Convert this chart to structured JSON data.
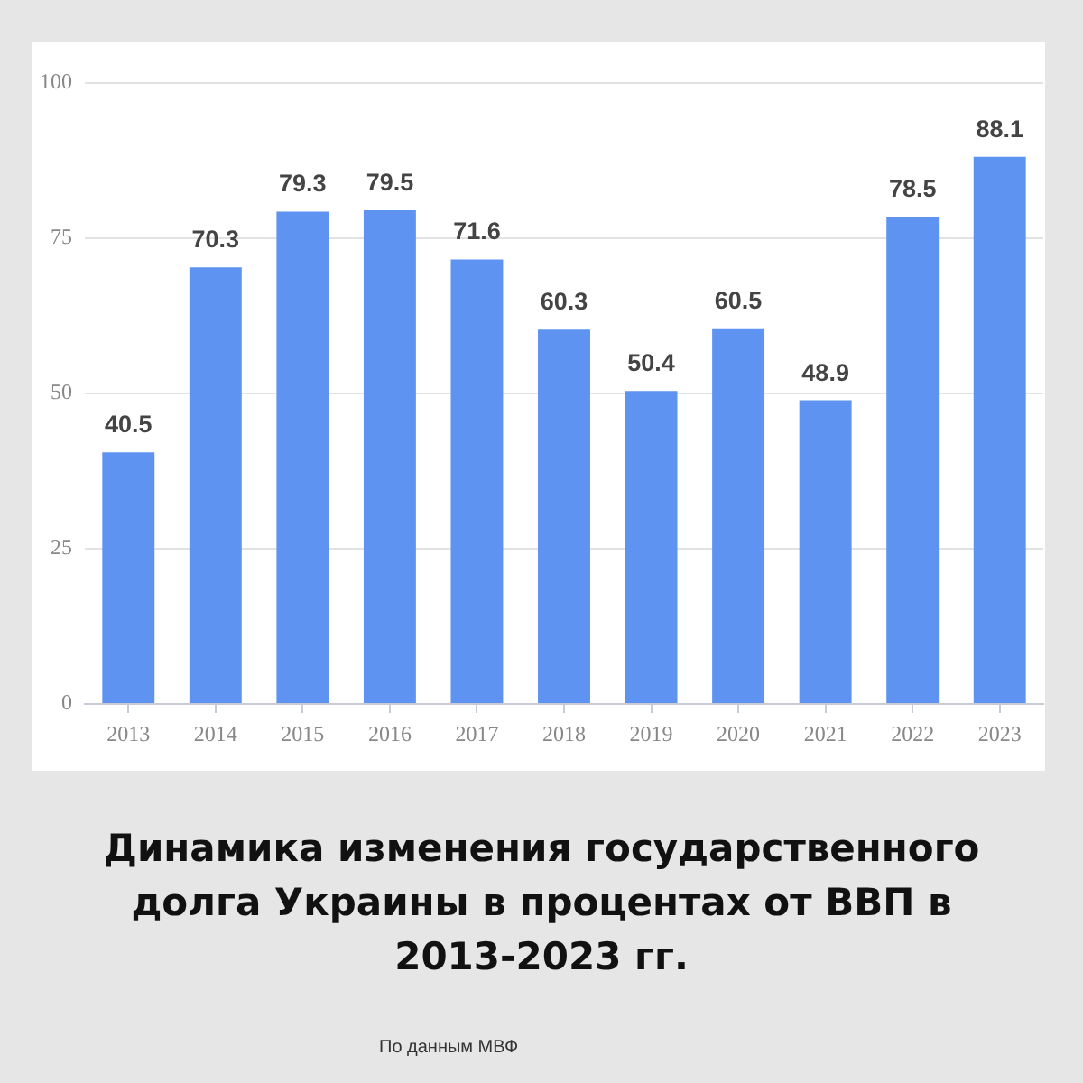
{
  "chart_data": {
    "type": "bar",
    "title": "Динамика изменения государственного долга Украины в процентах от ВВП в 2013-2023 гг.",
    "categories": [
      "2013",
      "2014",
      "2015",
      "2016",
      "2017",
      "2018",
      "2019",
      "2020",
      "2021",
      "2022",
      "2023"
    ],
    "values": [
      40.5,
      70.3,
      79.3,
      79.5,
      71.6,
      60.3,
      50.4,
      60.5,
      48.9,
      78.5,
      88.1
    ],
    "color": "#5f93f1",
    "ylim": [
      0,
      100
    ],
    "yticks": [
      0,
      25,
      50,
      75,
      100
    ],
    "grid": "y",
    "data_labels": true,
    "annotations": [
      "По данным МВФ"
    ]
  }
}
